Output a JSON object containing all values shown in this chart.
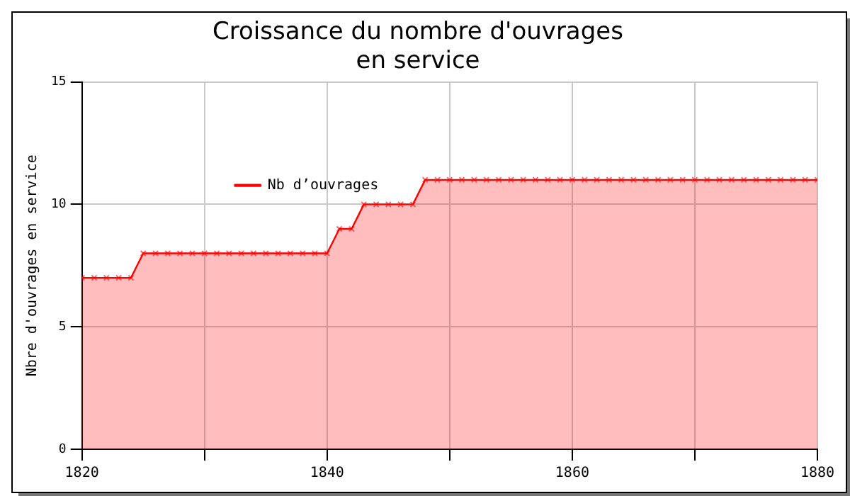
{
  "chart_data": {
    "type": "area",
    "title": "Croissance du nombre d'ouvrages\nen service",
    "ylabel": "Nbre d'ouvrages en service",
    "x": [
      1820,
      1821,
      1822,
      1823,
      1824,
      1825,
      1826,
      1827,
      1828,
      1829,
      1830,
      1831,
      1832,
      1833,
      1834,
      1835,
      1836,
      1837,
      1838,
      1839,
      1840,
      1841,
      1842,
      1843,
      1844,
      1845,
      1846,
      1847,
      1848,
      1849,
      1850,
      1851,
      1852,
      1853,
      1854,
      1855,
      1856,
      1857,
      1858,
      1859,
      1860,
      1861,
      1862,
      1863,
      1864,
      1865,
      1866,
      1867,
      1868,
      1869,
      1870,
      1871,
      1872,
      1873,
      1874,
      1875,
      1876,
      1877,
      1878,
      1879,
      1880
    ],
    "series": [
      {
        "name": "Nb d’ouvrages",
        "color": "#ff0000",
        "values": [
          7,
          7,
          7,
          7,
          7,
          8,
          8,
          8,
          8,
          8,
          8,
          8,
          8,
          8,
          8,
          8,
          8,
          8,
          8,
          8,
          8,
          9,
          9,
          10,
          10,
          10,
          10,
          10,
          11,
          11,
          11,
          11,
          11,
          11,
          11,
          11,
          11,
          11,
          11,
          11,
          11,
          11,
          11,
          11,
          11,
          11,
          11,
          11,
          11,
          11,
          11,
          11,
          11,
          11,
          11,
          11,
          11,
          11,
          11,
          11,
          11
        ]
      }
    ],
    "xlim": [
      1820,
      1880
    ],
    "xticks": [
      1820,
      {
        "value": 1830,
        "label": null
      },
      1840,
      {
        "value": 1850,
        "label": null
      },
      1860,
      {
        "value": 1870,
        "label": null
      },
      1880
    ],
    "ylim": [
      0,
      15
    ],
    "yticks": [
      0,
      5,
      10,
      15
    ],
    "grid": true,
    "legend": "top left",
    "marker": "cross",
    "line_style": "solid"
  }
}
